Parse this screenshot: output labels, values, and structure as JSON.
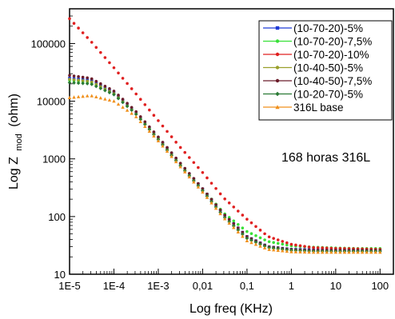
{
  "chart_data": {
    "type": "scatter",
    "title": "",
    "annotation": "168 horas 316L",
    "xlabel": "Log freq (KHz)",
    "ylabel_main": "Log Z",
    "ylabel_sub": "mod",
    "ylabel_unit": "(ohm)",
    "x_scale": "log",
    "y_scale": "log",
    "xlim": [
      1e-05,
      200
    ],
    "ylim": [
      10,
      400000
    ],
    "x_ticks": [
      1e-05,
      0.0001,
      0.001,
      0.01,
      0.1,
      1,
      10,
      100
    ],
    "x_tick_labels": [
      "1E-5",
      "1E-4",
      "1E-3",
      "0,01",
      "0,1",
      "1",
      "10",
      "100"
    ],
    "y_ticks": [
      10,
      100,
      1000,
      10000,
      100000
    ],
    "y_tick_labels": [
      "10",
      "100",
      "1000",
      "10000",
      "100000"
    ],
    "grid": false,
    "legend_position": "top-right",
    "series": [
      {
        "name": "(10-70-20)-5%",
        "color": "#1f3ad6",
        "marker": "square",
        "x": [
          1e-05,
          3e-05,
          0.0001,
          0.0003,
          0.001,
          0.003,
          0.01,
          0.03,
          0.1,
          0.3,
          1,
          3,
          10,
          30,
          100
        ],
        "y": [
          25000,
          23000,
          14000,
          6500,
          2300,
          850,
          300,
          110,
          45,
          30,
          27,
          26.5,
          26,
          26,
          26
        ]
      },
      {
        "name": "(10-70-20)-7,5%",
        "color": "#38e038",
        "marker": "circle",
        "x": [
          1e-05,
          3e-05,
          0.0001,
          0.0003,
          0.001,
          0.003,
          0.01,
          0.03,
          0.1,
          0.3,
          1,
          3,
          10,
          30,
          100
        ],
        "y": [
          23000,
          21000,
          13500,
          6300,
          2250,
          830,
          300,
          115,
          55,
          37,
          31,
          29.5,
          28.5,
          28,
          28
        ]
      },
      {
        "name": "(10-70-20)-10%",
        "color": "#e02020",
        "marker": "circle",
        "x": [
          1e-05,
          3e-05,
          0.0001,
          0.0003,
          0.001,
          0.003,
          0.01,
          0.03,
          0.1,
          0.3,
          1,
          3,
          10,
          30,
          100
        ],
        "y": [
          270000,
          110000,
          38000,
          14000,
          4600,
          1650,
          580,
          210,
          90,
          45,
          33,
          29,
          28,
          27.5,
          27
        ]
      },
      {
        "name": "(10-40-50)-5%",
        "color": "#9aa02a",
        "marker": "circle",
        "x": [
          1e-05,
          3e-05,
          0.0001,
          0.0003,
          0.001,
          0.003,
          0.01,
          0.03,
          0.1,
          0.3,
          1,
          3,
          10,
          30,
          100
        ],
        "y": [
          24000,
          22000,
          13500,
          6300,
          2200,
          800,
          280,
          100,
          42,
          29,
          26,
          25.5,
          25,
          25,
          25
        ]
      },
      {
        "name": "(10-40-50)-7,5%",
        "color": "#6b1c2a",
        "marker": "circle",
        "x": [
          1e-05,
          3e-05,
          0.0001,
          0.0003,
          0.001,
          0.003,
          0.01,
          0.03,
          0.1,
          0.3,
          1,
          3,
          10,
          30,
          100
        ],
        "y": [
          28000,
          25000,
          15000,
          6900,
          2400,
          880,
          305,
          110,
          45,
          30,
          27,
          26,
          26,
          26,
          26
        ]
      },
      {
        "name": "(10-20-70)-5%",
        "color": "#2a7a35",
        "marker": "diamond",
        "x": [
          1e-05,
          3e-05,
          0.0001,
          0.0003,
          0.001,
          0.003,
          0.01,
          0.03,
          0.1,
          0.3,
          1,
          3,
          10,
          30,
          100
        ],
        "y": [
          21000,
          20000,
          13000,
          6200,
          2150,
          790,
          280,
          100,
          42,
          29,
          26,
          25,
          25,
          25,
          25
        ]
      },
      {
        "name": "316L base",
        "color": "#f0901c",
        "marker": "triangle",
        "x": [
          1e-05,
          3e-05,
          0.0001,
          0.0003,
          0.001,
          0.003,
          0.01,
          0.03,
          0.1,
          0.3,
          1,
          3,
          10,
          30,
          100
        ],
        "y": [
          11500,
          12500,
          10000,
          5600,
          2050,
          760,
          265,
          95,
          38,
          27,
          24.5,
          24,
          24,
          24,
          24
        ]
      }
    ]
  }
}
